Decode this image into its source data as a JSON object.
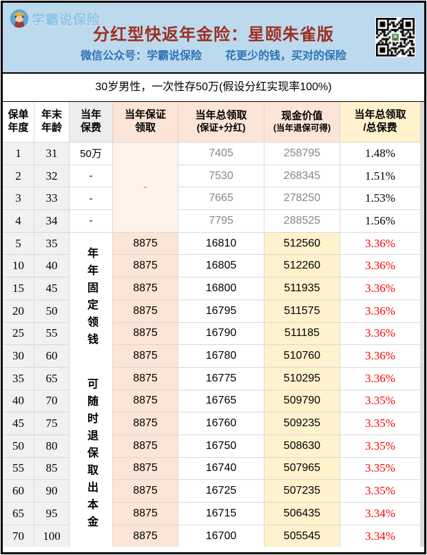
{
  "brand": {
    "logo_text": "学霸说保险"
  },
  "header": {
    "title": "分红型快返年金险：星颐朱雀版",
    "subtitle_left": "微信公众号：学霸说保险",
    "subtitle_right": "花更少的钱，买对的保险"
  },
  "condition": "30岁男性，一次性存50万(假设分红实现率100%)",
  "colors": {
    "banner_bg": "#BDD9EE",
    "title_red": "#9C3120",
    "subtitle_blue": "#2E74B5",
    "peach": "#FCE4D6",
    "yellow": "#FFF2CC",
    "row_gray": "#F1F1F1",
    "muted_text": "#878787",
    "ratio_red": "#FE0000"
  },
  "table": {
    "columns": [
      {
        "line1": "保单",
        "line2": "年度"
      },
      {
        "line1": "年末",
        "line2": "年龄"
      },
      {
        "line1": "当年",
        "line2": "保费"
      },
      {
        "line1": "当年保证",
        "line2": "领取"
      },
      {
        "line1": "当年总领取",
        "line2": "(保证+分红)"
      },
      {
        "line1": "现金价值",
        "line2": "(当年退保可得)"
      },
      {
        "line1": "当年总领取",
        "line2": "/总保费"
      }
    ],
    "guaranteed_merged_placeholder": "-",
    "premium_notes": [
      "年年固定领钱",
      "可随时退保取出本金"
    ],
    "rows": [
      {
        "year": "1",
        "age": "31",
        "premium": "50万",
        "guaranteed": "",
        "total": "7405",
        "cash": "258795",
        "ratio": "1.48%"
      },
      {
        "year": "2",
        "age": "32",
        "premium": "-",
        "guaranteed": "",
        "total": "7530",
        "cash": "268345",
        "ratio": "1.51%"
      },
      {
        "year": "3",
        "age": "33",
        "premium": "-",
        "guaranteed": "",
        "total": "7665",
        "cash": "278250",
        "ratio": "1.53%"
      },
      {
        "year": "4",
        "age": "34",
        "premium": "-",
        "guaranteed": "",
        "total": "7795",
        "cash": "288525",
        "ratio": "1.56%"
      },
      {
        "year": "5",
        "age": "35",
        "premium": "",
        "guaranteed": "8875",
        "total": "16810",
        "cash": "512560",
        "ratio": "3.36%"
      },
      {
        "year": "10",
        "age": "40",
        "premium": "",
        "guaranteed": "8875",
        "total": "16805",
        "cash": "512260",
        "ratio": "3.36%"
      },
      {
        "year": "15",
        "age": "45",
        "premium": "",
        "guaranteed": "8875",
        "total": "16800",
        "cash": "511935",
        "ratio": "3.36%"
      },
      {
        "year": "20",
        "age": "50",
        "premium": "",
        "guaranteed": "8875",
        "total": "16795",
        "cash": "511575",
        "ratio": "3.36%"
      },
      {
        "year": "25",
        "age": "55",
        "premium": "",
        "guaranteed": "8875",
        "total": "16790",
        "cash": "511185",
        "ratio": "3.36%"
      },
      {
        "year": "30",
        "age": "60",
        "premium": "",
        "guaranteed": "8875",
        "total": "16780",
        "cash": "510760",
        "ratio": "3.36%"
      },
      {
        "year": "35",
        "age": "65",
        "premium": "",
        "guaranteed": "8875",
        "total": "16775",
        "cash": "510295",
        "ratio": "3.36%"
      },
      {
        "year": "40",
        "age": "70",
        "premium": "",
        "guaranteed": "8875",
        "total": "16765",
        "cash": "509790",
        "ratio": "3.35%"
      },
      {
        "year": "45",
        "age": "75",
        "premium": "",
        "guaranteed": "8875",
        "total": "16760",
        "cash": "509235",
        "ratio": "3.35%"
      },
      {
        "year": "50",
        "age": "80",
        "premium": "",
        "guaranteed": "8875",
        "total": "16750",
        "cash": "508630",
        "ratio": "3.35%"
      },
      {
        "year": "55",
        "age": "85",
        "premium": "",
        "guaranteed": "8875",
        "total": "16740",
        "cash": "507965",
        "ratio": "3.35%"
      },
      {
        "year": "60",
        "age": "90",
        "premium": "",
        "guaranteed": "8875",
        "total": "16725",
        "cash": "507235",
        "ratio": "3.35%"
      },
      {
        "year": "65",
        "age": "95",
        "premium": "",
        "guaranteed": "8875",
        "total": "16715",
        "cash": "506435",
        "ratio": "3.34%"
      },
      {
        "year": "70",
        "age": "100",
        "premium": "",
        "guaranteed": "8875",
        "total": "16700",
        "cash": "505545",
        "ratio": "3.34%"
      }
    ]
  }
}
